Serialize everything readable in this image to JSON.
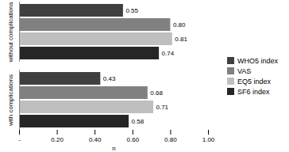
{
  "chart_data": {
    "type": "bar",
    "orientation": "horizontal",
    "categories": [
      "without complications",
      "with complications"
    ],
    "series": [
      {
        "name": "WHO5 index",
        "color": "#3f3f3f",
        "values": [
          0.55,
          0.43
        ],
        "value_labels": [
          "0.55",
          "0.43"
        ]
      },
      {
        "name": "VAS",
        "color": "#808080",
        "values": [
          0.8,
          0.68
        ],
        "value_labels": [
          "0.80",
          "0.68"
        ]
      },
      {
        "name": "EQ5 index",
        "color": "#bfbfbf",
        "values": [
          0.81,
          0.71
        ],
        "value_labels": [
          "0.81",
          "0.71"
        ]
      },
      {
        "name": "SF6 index",
        "color": "#262626",
        "values": [
          0.74,
          0.58
        ],
        "value_labels": [
          "0.74",
          "0.58"
        ]
      }
    ],
    "xlabel": "n",
    "xlim": [
      0,
      1
    ],
    "xticks": [
      {
        "value": 0,
        "label": "-"
      },
      {
        "value": 0.2,
        "label": "0.20"
      },
      {
        "value": 0.4,
        "label": "0.40"
      },
      {
        "value": 0.6,
        "label": "0.60"
      },
      {
        "value": 0.8,
        "label": "0.80"
      },
      {
        "value": 1,
        "label": "1.00"
      }
    ],
    "grid": false,
    "legend": "right",
    "data_labels": true
  }
}
